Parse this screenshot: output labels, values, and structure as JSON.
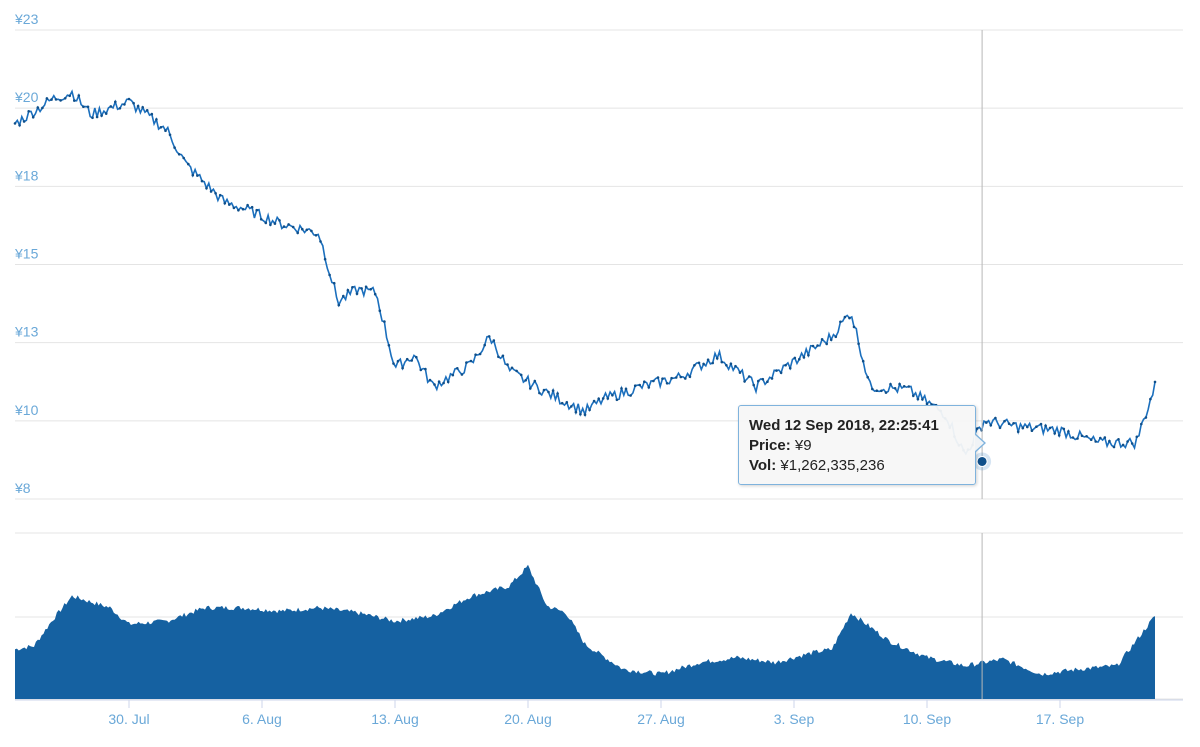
{
  "chart_data": [
    {
      "type": "line",
      "title": "",
      "xlabel": "",
      "ylabel": "",
      "ylim": [
        8,
        23
      ],
      "yticks": [
        "¥8",
        "¥10",
        "¥13",
        "¥15",
        "¥18",
        "¥20",
        "¥23"
      ],
      "grid": true,
      "colors": {
        "line": "#1b6fbd",
        "marker": "#0f4f8a"
      },
      "x_dates": [
        "2018-07-24",
        "2018-07-26",
        "2018-07-27",
        "2018-07-28",
        "2018-07-30",
        "2018-08-01",
        "2018-08-02",
        "2018-08-04",
        "2018-08-05",
        "2018-08-07",
        "2018-08-09",
        "2018-08-10",
        "2018-08-11",
        "2018-08-12",
        "2018-08-13",
        "2018-08-14",
        "2018-08-15",
        "2018-08-17",
        "2018-08-18",
        "2018-08-19",
        "2018-08-21",
        "2018-08-23",
        "2018-08-24",
        "2018-08-26",
        "2018-08-28",
        "2018-08-30",
        "2018-09-01",
        "2018-09-03",
        "2018-09-05",
        "2018-09-06",
        "2018-09-07",
        "2018-09-09",
        "2018-09-11",
        "2018-09-12",
        "2018-09-13",
        "2018-09-15",
        "2018-09-17",
        "2018-09-19",
        "2018-09-21",
        "2018-09-22"
      ],
      "values": [
        20.0,
        20.8,
        21.0,
        20.3,
        20.7,
        19.8,
        18.7,
        17.5,
        17.3,
        16.8,
        16.5,
        14.3,
        14.7,
        14.6,
        12.2,
        12.6,
        11.6,
        12.3,
        13.2,
        12.1,
        11.4,
        10.8,
        11.2,
        11.6,
        11.9,
        12.6,
        11.6,
        12.4,
        13.2,
        14.0,
        11.6,
        11.5,
        10.7,
        9.4,
        10.5,
        10.3,
        10.2,
        9.8,
        9.8,
        11.6
      ]
    },
    {
      "type": "area",
      "title": "",
      "xlabel": "",
      "ylabel": "",
      "colors": {
        "fill": "#1561a1"
      },
      "xticks": [
        "30. Jul",
        "6. Aug",
        "13. Aug",
        "20. Aug",
        "27. Aug",
        "3. Sep",
        "10. Sep",
        "17. Sep"
      ],
      "x_dates": [
        "2018-07-24",
        "2018-07-25",
        "2018-07-26",
        "2018-07-27",
        "2018-07-29",
        "2018-07-30",
        "2018-08-01",
        "2018-08-03",
        "2018-08-05",
        "2018-08-07",
        "2018-08-09",
        "2018-08-11",
        "2018-08-13",
        "2018-08-15",
        "2018-08-17",
        "2018-08-19",
        "2018-08-20",
        "2018-08-21",
        "2018-08-22",
        "2018-08-23",
        "2018-08-25",
        "2018-08-27",
        "2018-08-29",
        "2018-08-31",
        "2018-09-02",
        "2018-09-04",
        "2018-09-05",
        "2018-09-06",
        "2018-09-08",
        "2018-09-10",
        "2018-09-12",
        "2018-09-14",
        "2018-09-16",
        "2018-09-18",
        "2018-09-20",
        "2018-09-22"
      ],
      "values": [
        0.3,
        0.32,
        0.48,
        0.62,
        0.55,
        0.45,
        0.47,
        0.55,
        0.55,
        0.53,
        0.55,
        0.52,
        0.47,
        0.5,
        0.62,
        0.68,
        0.8,
        0.56,
        0.52,
        0.33,
        0.18,
        0.15,
        0.22,
        0.25,
        0.22,
        0.28,
        0.3,
        0.52,
        0.35,
        0.25,
        0.2,
        0.24,
        0.15,
        0.18,
        0.2,
        0.5
      ]
    }
  ],
  "tooltip": {
    "date": "Wed 12 Sep 2018, 22:25:41",
    "price_label": "Price:",
    "price_value": "¥9",
    "vol_label": "Vol:",
    "vol_value": "¥1,262,335,236"
  },
  "hover_date": "2018-09-12"
}
